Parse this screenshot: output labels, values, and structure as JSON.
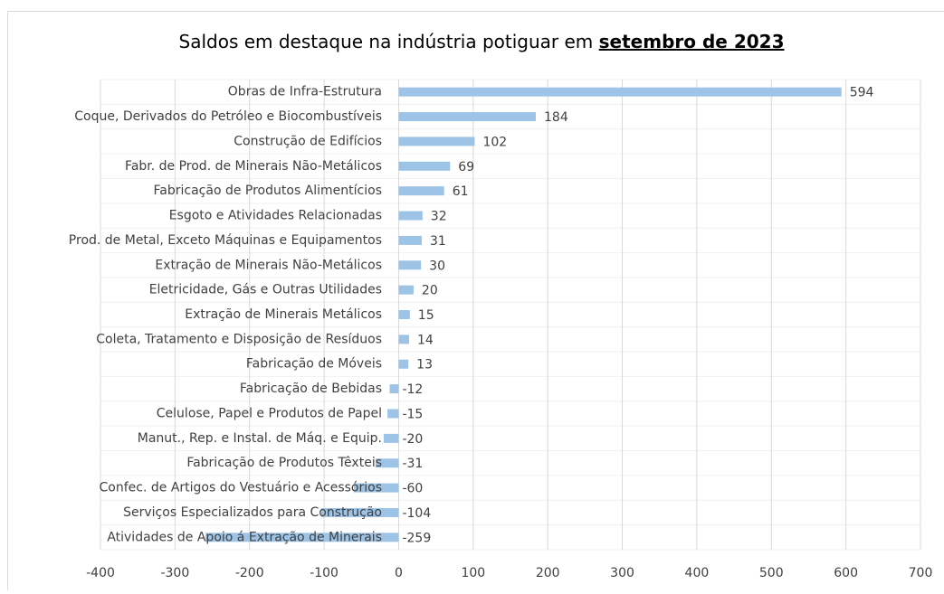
{
  "chart_data": {
    "type": "hbar",
    "title": "Saldos em destaque na indústria potiguar em",
    "title_emphasis": "setembro de 2023",
    "categories": [
      "Obras de Infra-Estrutura",
      "Coque, Derivados do Petróleo e Biocombustíveis",
      "Construção de Edifícios",
      "Fabr. de Prod. de Minerais Não-Metálicos",
      "Fabricação de Produtos Alimentícios",
      "Esgoto e Atividades Relacionadas",
      "Prod. de Metal, Exceto Máquinas e Equipamentos",
      "Extração de Minerais Não-Metálicos",
      "Eletricidade, Gás e Outras Utilidades",
      "Extração de Minerais Metálicos",
      "Coleta, Tratamento e Disposição de Resíduos",
      "Fabricação de Móveis",
      "Fabricação de Bebidas",
      "Celulose, Papel e Produtos de Papel",
      "Manut., Rep. e Instal. de Máq. e Equip.",
      "Fabricação de Produtos Têxteis",
      "Confec. de Artigos do Vestuário e Acessórios",
      "Serviços Especializados para Construção",
      "Atividades de Apoio á Extração de Minerais"
    ],
    "values": [
      594,
      184,
      102,
      69,
      61,
      32,
      31,
      30,
      20,
      15,
      14,
      13,
      -12,
      -15,
      -20,
      -31,
      -60,
      -104,
      -259
    ],
    "color": "#9dc3e6",
    "label_color_positive": "#000000",
    "label_color_negative": "#ff0000",
    "xlim": [
      -400,
      700
    ],
    "xticks": [
      -400,
      -300,
      -200,
      -100,
      0,
      100,
      200,
      300,
      400,
      500,
      600,
      700
    ],
    "grid": true
  }
}
